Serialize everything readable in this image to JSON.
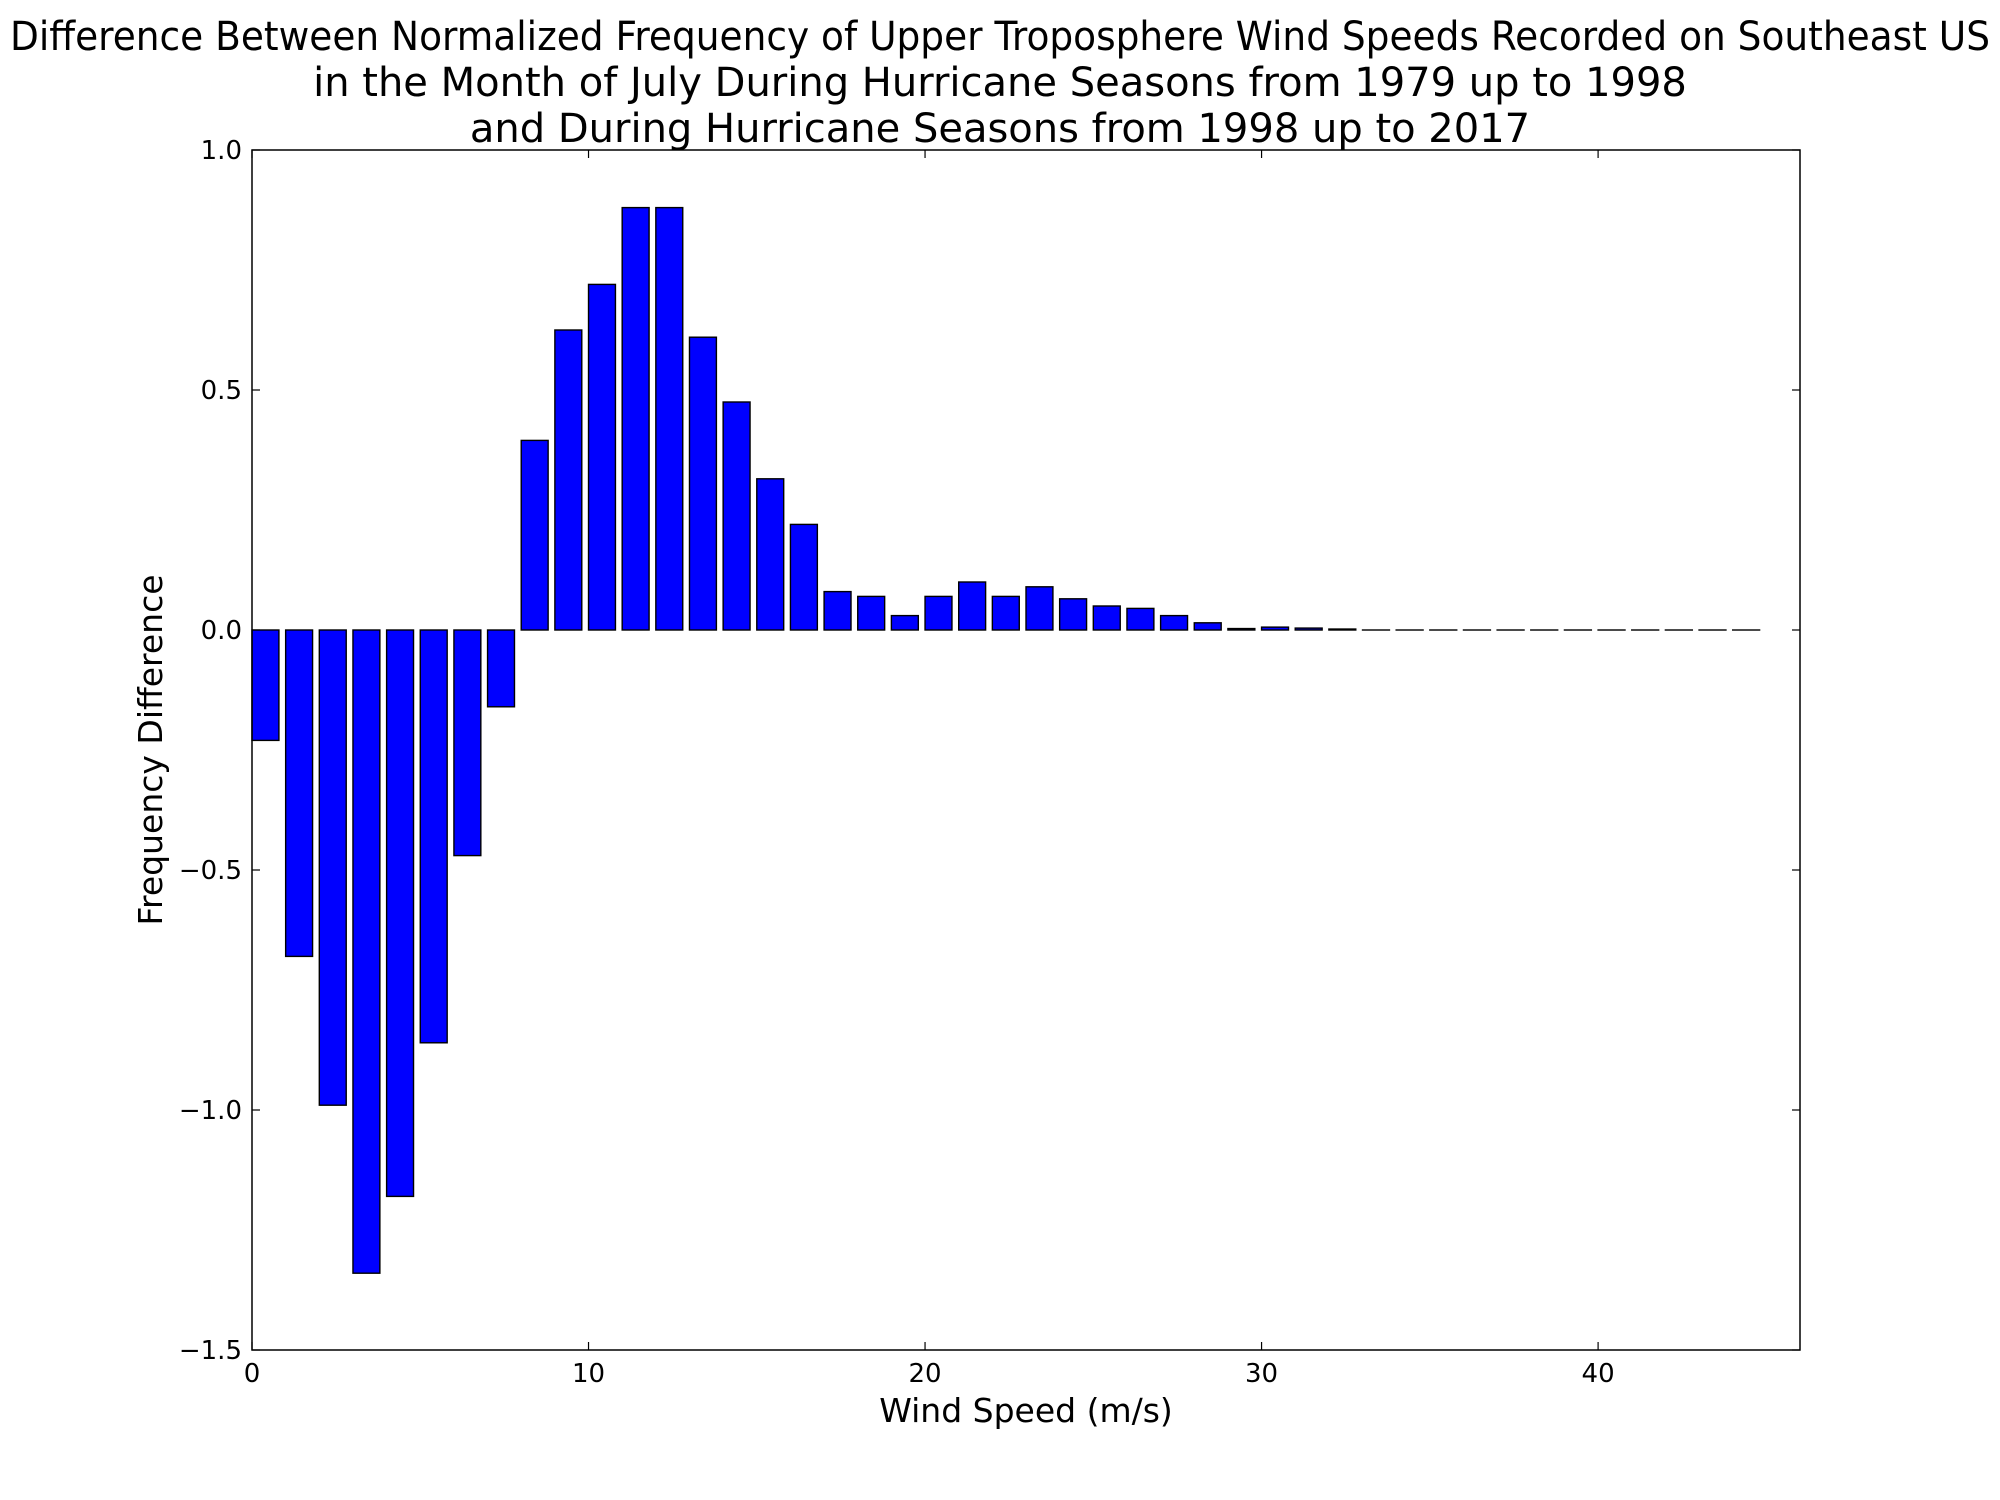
{
  "chart_data": {
    "type": "bar",
    "title_lines": [
      "Difference Between Normalized Frequency of Upper Troposphere Wind Speeds Recorded on Southeast US",
      "in the Month of July During Hurricane Seasons from 1979 up to 1998",
      "and During Hurricane Seasons from 1998 up to 2017"
    ],
    "xlabel": "Wind Speed (m/s)",
    "ylabel": "Frequency Difference",
    "xlim": [
      0,
      46
    ],
    "ylim": [
      -1.5,
      1.0
    ],
    "xticks": [
      0,
      10,
      20,
      30,
      40
    ],
    "xtick_labels": [
      "0",
      "10",
      "20",
      "30",
      "40"
    ],
    "yticks": [
      -1.5,
      -1.0,
      -0.5,
      0.0,
      0.5,
      1.0
    ],
    "ytick_labels": [
      "−1.5",
      "−1.0",
      "−0.5",
      "0.0",
      "0.5",
      "1.0"
    ],
    "bar_width": 0.8,
    "x": [
      0,
      1,
      2,
      3,
      4,
      5,
      6,
      7,
      8,
      9,
      10,
      11,
      12,
      13,
      14,
      15,
      16,
      17,
      18,
      19,
      20,
      21,
      22,
      23,
      24,
      25,
      26,
      27,
      28,
      29,
      30,
      31,
      32,
      33,
      34,
      35,
      36,
      37,
      38,
      39,
      40,
      41,
      42,
      43,
      44
    ],
    "values": [
      -0.23,
      -0.68,
      -0.99,
      -1.34,
      -1.18,
      -0.86,
      -0.47,
      -0.16,
      0.395,
      0.625,
      0.72,
      0.88,
      0.88,
      0.61,
      0.475,
      0.315,
      0.22,
      0.08,
      0.07,
      0.03,
      0.07,
      0.1,
      0.07,
      0.09,
      0.065,
      0.05,
      0.045,
      0.03,
      0.015,
      0.003,
      0.006,
      0.004,
      0.002,
      0,
      0,
      0,
      0,
      0,
      0,
      0,
      0,
      0,
      0,
      0,
      0
    ],
    "colors": {
      "bar_fill": "#0000ff",
      "bar_edge": "#000000"
    },
    "grid": false,
    "legend": "none"
  }
}
